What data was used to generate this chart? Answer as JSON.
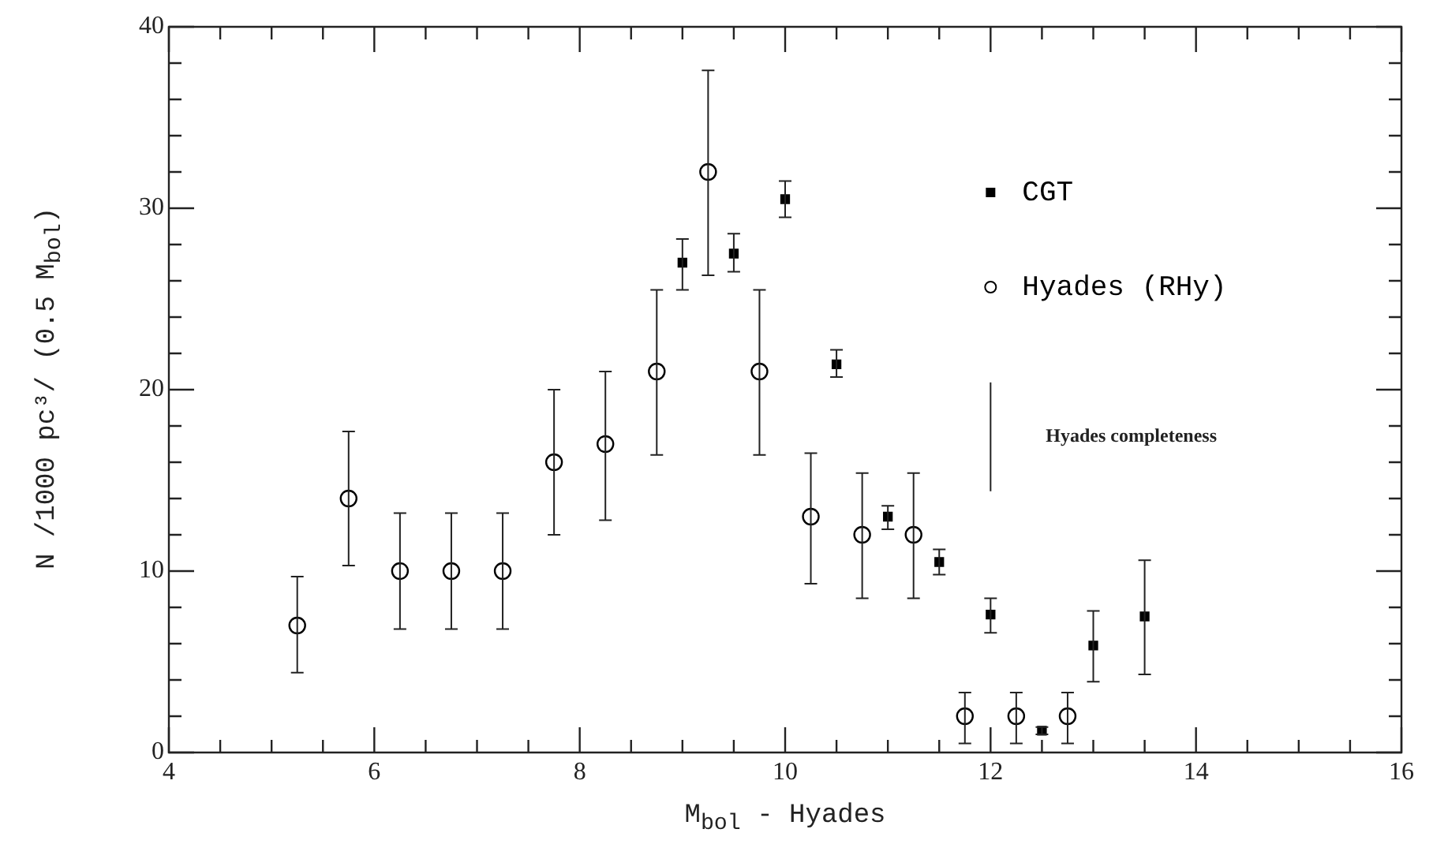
{
  "chart_data": {
    "type": "scatter",
    "xlabel": "M$_{bol}$ - Hyades",
    "ylabel": "N /1000 pc³/ (0.5 M$_{bol}$)",
    "xlim": [
      4,
      16
    ],
    "ylim": [
      0,
      40
    ],
    "xticks": [
      4,
      {
        "value": 4.5,
        "label": null
      },
      {
        "value": 5,
        "label": null
      },
      {
        "value": 5.5,
        "label": null
      },
      6,
      {
        "value": 6.5,
        "label": null
      },
      {
        "value": 7,
        "label": null
      },
      {
        "value": 7.5,
        "label": null
      },
      8,
      {
        "value": 8.5,
        "label": null
      },
      {
        "value": 9,
        "label": null
      },
      {
        "value": 9.5,
        "label": null
      },
      10,
      {
        "value": 10.5,
        "label": null
      },
      {
        "value": 11,
        "label": null
      },
      {
        "value": 11.5,
        "label": null
      },
      12,
      {
        "value": 12.5,
        "label": null
      },
      {
        "value": 13,
        "label": null
      },
      {
        "value": 13.5,
        "label": null
      },
      14,
      {
        "value": 14.5,
        "label": null
      },
      {
        "value": 15,
        "label": null
      },
      {
        "value": 15.5,
        "label": null
      },
      16
    ],
    "yticks": [
      0,
      {
        "value": 2,
        "label": null
      },
      {
        "value": 4,
        "label": null
      },
      {
        "value": 6,
        "label": null
      },
      {
        "value": 8,
        "label": null
      },
      10,
      {
        "value": 12,
        "label": null
      },
      {
        "value": 14,
        "label": null
      },
      {
        "value": 16,
        "label": null
      },
      {
        "value": 18,
        "label": null
      },
      20,
      {
        "value": 22,
        "label": null
      },
      {
        "value": 24,
        "label": null
      },
      {
        "value": 26,
        "label": null
      },
      {
        "value": 28,
        "label": null
      },
      30,
      {
        "value": 32,
        "label": null
      },
      {
        "value": 34,
        "label": null
      },
      {
        "value": 36,
        "label": null
      },
      {
        "value": 38,
        "label": null
      },
      40
    ],
    "grid": false,
    "legend": "top right",
    "ref_lines": [
      {
        "axis": "x",
        "value": 12,
        "label": "Hyades completeness"
      }
    ],
    "series": [
      {
        "name": "CGT",
        "color": "#000000",
        "marker": "square",
        "x": [
          9,
          9.5,
          10,
          10.5,
          11,
          11.5,
          12,
          12.5,
          13,
          13.5
        ],
        "values": [
          27,
          27.5,
          30.5,
          21.4,
          13,
          10.5,
          7.6,
          1.2,
          5.9,
          7.5
        ],
        "errors": [
          [
            25.5,
            28.3
          ],
          [
            26.5,
            28.6
          ],
          [
            29.5,
            31.5
          ],
          [
            20.7,
            22.2
          ],
          [
            12.3,
            13.6
          ],
          [
            9.8,
            11.2
          ],
          [
            6.6,
            8.5
          ],
          [
            1,
            1.4
          ],
          [
            3.9,
            7.8
          ],
          [
            4.3,
            10.6
          ]
        ]
      },
      {
        "name": "Hyades (RHy)",
        "color": "#000000",
        "marker": "circle",
        "x": [
          5.25,
          5.75,
          6.25,
          6.75,
          7.25,
          7.75,
          8.25,
          8.75,
          9.25,
          9.75,
          10.25,
          10.75,
          11.25,
          11.75,
          12.25,
          12.75
        ],
        "values": [
          7,
          14,
          10,
          10,
          10,
          16,
          17,
          21,
          32,
          21,
          13,
          12,
          12,
          2,
          2,
          2
        ],
        "errors": [
          [
            4.4,
            9.7
          ],
          [
            10.3,
            17.7
          ],
          [
            6.8,
            13.2
          ],
          [
            6.8,
            13.2
          ],
          [
            6.8,
            13.2
          ],
          [
            12,
            20
          ],
          [
            12.8,
            21
          ],
          [
            16.4,
            25.5
          ],
          [
            26.3,
            37.6
          ],
          [
            16.4,
            25.5
          ],
          [
            9.3,
            16.5
          ],
          [
            8.5,
            15.4
          ],
          [
            8.5,
            15.4
          ],
          [
            0.5,
            3.3
          ],
          [
            0.5,
            3.3
          ],
          [
            0.5,
            3.3
          ]
        ]
      }
    ]
  }
}
